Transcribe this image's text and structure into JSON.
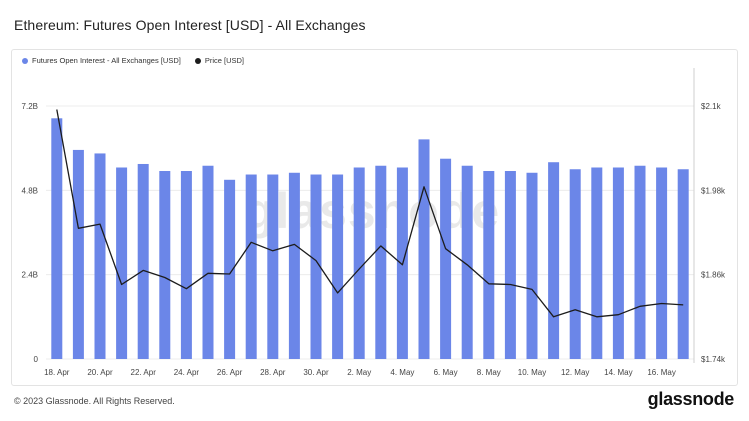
{
  "title": "Ethereum: Futures Open Interest [USD] - All Exchanges",
  "footer": "© 2023 Glassnode. All Rights Reserved.",
  "brand": "glassnode",
  "watermark": "glassnode",
  "colors": {
    "bar": "#6b86e8",
    "line": "#1c1c1c",
    "grid": "#ececec"
  },
  "chart_data": {
    "type": "bar",
    "legend_position": "top-left",
    "grid": true,
    "x": [
      "18 Apr",
      "19 Apr",
      "20 Apr",
      "21 Apr",
      "22 Apr",
      "23 Apr",
      "24 Apr",
      "25 Apr",
      "26 Apr",
      "27 Apr",
      "28 Apr",
      "29 Apr",
      "30 Apr",
      "1 May",
      "2 May",
      "3 May",
      "4 May",
      "5 May",
      "6 May",
      "7 May",
      "8 May",
      "9 May",
      "10 May",
      "11 May",
      "12 May",
      "13 May",
      "14 May",
      "15 May",
      "16 May",
      "17 May"
    ],
    "x_tick_labels": [
      "18. Apr",
      "20. Apr",
      "22. Apr",
      "24. Apr",
      "26. Apr",
      "28. Apr",
      "30. Apr",
      "2. May",
      "4. May",
      "6. May",
      "8. May",
      "10. May",
      "12. May",
      "14. May",
      "16. May"
    ],
    "series": [
      {
        "name": "Futures Open Interest - All Exchanges [USD]",
        "kind": "bar",
        "axis": "left",
        "values": [
          6.85,
          5.95,
          5.85,
          5.45,
          5.55,
          5.35,
          5.35,
          5.5,
          5.1,
          5.25,
          5.25,
          5.3,
          5.25,
          5.25,
          5.45,
          5.5,
          5.45,
          6.25,
          5.7,
          5.5,
          5.35,
          5.35,
          5.3,
          5.6,
          5.4,
          5.45,
          5.45,
          5.5,
          5.45,
          5.4
        ]
      },
      {
        "name": "Price [USD]",
        "kind": "line",
        "axis": "right",
        "values": [
          2.095,
          1.926,
          1.932,
          1.846,
          1.866,
          1.856,
          1.84,
          1.862,
          1.861,
          1.906,
          1.894,
          1.903,
          1.88,
          1.834,
          1.868,
          1.901,
          1.874,
          1.985,
          1.897,
          1.874,
          1.847,
          1.846,
          1.839,
          1.8,
          1.81,
          1.8,
          1.803,
          1.815,
          1.819,
          1.817
        ]
      }
    ],
    "y_left": {
      "ticks": [
        "0",
        "2.4B",
        "4.8B",
        "7.2B"
      ],
      "min": 0,
      "max": 7.2
    },
    "y_right": {
      "ticks": [
        "$1.74k",
        "$1.86k",
        "$1.98k",
        "$2.1k"
      ],
      "min": 1.74,
      "max": 2.1
    }
  }
}
